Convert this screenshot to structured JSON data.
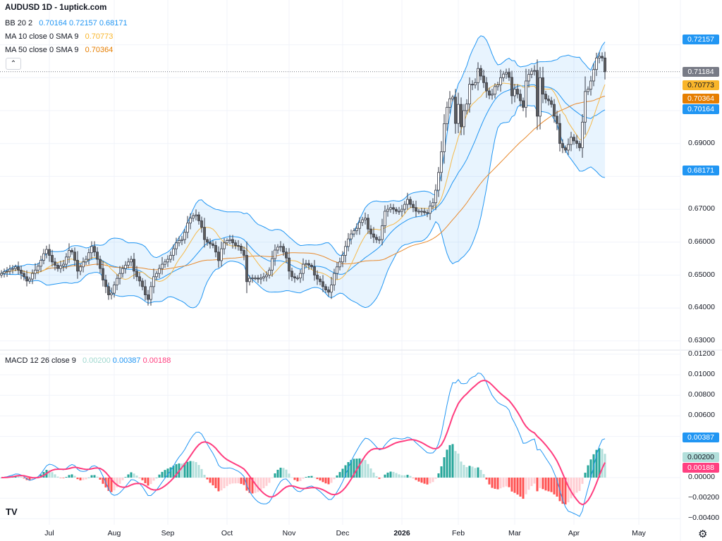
{
  "header": {
    "title": "AUDUSD 1D - 1uptick.com",
    "collapse_icon": "chevron-up-icon"
  },
  "legend": {
    "bb": {
      "label": "BB 20 2",
      "basis": "0.70164",
      "upper": "0.72157",
      "lower": "0.68171"
    },
    "ma10": {
      "label": "MA 10 close 0 SMA 9",
      "value": "0.70773"
    },
    "ma50": {
      "label": "MA 50 close 0 SMA 9",
      "value": "0.70364"
    },
    "macd": {
      "label": "MACD 12 26 close 9",
      "hist": "0.00200",
      "macd": "0.00387",
      "signal": "0.00188"
    }
  },
  "colors": {
    "bb": "#2196f3",
    "bb_fill": "rgba(33,150,243,0.10)",
    "ma10": "#f5b94a",
    "ma50": "#e8892c",
    "up": "#ffffff",
    "down": "#5d5d5d",
    "outline": "#363a45",
    "macd": "#2196f3",
    "signal": "#ff3d7f",
    "hist_up_strong": "#26a69a",
    "hist_up_weak": "#b2dfdb",
    "hist_dn_strong": "#ff5252",
    "hist_dn_weak": "#ffcdd2",
    "last": "#787b86"
  },
  "price_labels": [
    {
      "value": 0.72157,
      "text": "0.72157",
      "bg": "#2196f3",
      "fg": "#ffffff"
    },
    {
      "value": 0.71184,
      "text": "0.71184",
      "bg": "#787b86",
      "fg": "#ffffff"
    },
    {
      "value": 0.70773,
      "text": "0.70773",
      "bg": "#f9b52a",
      "fg": "#131722"
    },
    {
      "value": 0.70364,
      "text": "0.70364",
      "bg": "#e67e00",
      "fg": "#ffffff"
    },
    {
      "value": 0.70164,
      "text": "0.70164",
      "bg": "#2196f3",
      "fg": "#ffffff"
    },
    {
      "value": 0.68171,
      "text": "0.68171",
      "bg": "#2196f3",
      "fg": "#ffffff"
    }
  ],
  "macd_labels": [
    {
      "value": 0.00387,
      "text": "0.00387",
      "bg": "#2196f3",
      "fg": "#ffffff"
    },
    {
      "value": 0.002,
      "text": "0.00200",
      "bg": "#b2dfdb",
      "fg": "#131722"
    },
    {
      "value": 0.00188,
      "text": "0.00188",
      "bg": "#ff4081",
      "fg": "#ffffff"
    }
  ],
  "footer": {
    "logo": "TV",
    "settings_icon": "gear-icon"
  },
  "chart_data": {
    "type": "candlestick",
    "symbol": "AUDUSD",
    "interval": "1D",
    "price_ticks": [
      0.69,
      0.67,
      0.66,
      0.65,
      0.64,
      0.63
    ],
    "price_tick_labels": [
      "0.69000",
      "0.67000",
      "0.66000",
      "0.65000",
      "0.64000",
      "0.63000"
    ],
    "macd_ticks": [
      0.012,
      0.01,
      0.008,
      0.006,
      0.0,
      -0.002,
      -0.004
    ],
    "macd_tick_labels": [
      "0.01200",
      "0.01000",
      "0.00800",
      "0.00600",
      "0.00000",
      "−0.00200",
      "−0.00400"
    ],
    "x_labels": [
      "Jul",
      "Aug",
      "Sep",
      "Oct",
      "Nov",
      "Dec",
      "2026",
      "Feb",
      "Mar",
      "Apr",
      "May"
    ],
    "x_label_bar_index": [
      17,
      40,
      59,
      80,
      102,
      121,
      142,
      162,
      182,
      203,
      226
    ],
    "last_close": 0.71184,
    "grid": true,
    "closes": [
      0.6505,
      0.651,
      0.6512,
      0.6518,
      0.652,
      0.6525,
      0.6515,
      0.6505,
      0.6495,
      0.6482,
      0.6488,
      0.6505,
      0.6515,
      0.6527,
      0.6545,
      0.6565,
      0.6578,
      0.656,
      0.654,
      0.653,
      0.652,
      0.6528,
      0.6533,
      0.6555,
      0.6575,
      0.657,
      0.6545,
      0.6512,
      0.6525,
      0.654,
      0.6548,
      0.6568,
      0.6587,
      0.657,
      0.6548,
      0.652,
      0.6485,
      0.6465,
      0.644,
      0.6445,
      0.647,
      0.649,
      0.6505,
      0.652,
      0.653,
      0.654,
      0.6548,
      0.6512,
      0.6495,
      0.6482,
      0.6465,
      0.644,
      0.6426,
      0.6465,
      0.6495,
      0.6505,
      0.652,
      0.6533,
      0.654,
      0.6548,
      0.656,
      0.658,
      0.6598,
      0.6605,
      0.6608,
      0.663,
      0.6658,
      0.6673,
      0.668,
      0.6683,
      0.6665,
      0.6645,
      0.6608,
      0.66,
      0.6595,
      0.659,
      0.657,
      0.6544,
      0.658,
      0.6598,
      0.6605,
      0.6608,
      0.6598,
      0.659,
      0.6588,
      0.6575,
      0.656,
      0.648,
      0.649,
      0.6491,
      0.6491,
      0.6488,
      0.6491,
      0.6495,
      0.65,
      0.6515,
      0.655,
      0.6576,
      0.6585,
      0.6587,
      0.657,
      0.6552,
      0.6512,
      0.6495,
      0.6491,
      0.6491,
      0.6505,
      0.6533,
      0.6535,
      0.653,
      0.6525,
      0.65,
      0.6488,
      0.648,
      0.6465,
      0.6455,
      0.6448,
      0.647,
      0.6505,
      0.6525,
      0.654,
      0.656,
      0.6587,
      0.661,
      0.6625,
      0.6635,
      0.6642,
      0.666,
      0.6668,
      0.6673,
      0.664,
      0.6625,
      0.6615,
      0.6608,
      0.6608,
      0.665,
      0.6694,
      0.67,
      0.6705,
      0.67,
      0.6694,
      0.6694,
      0.67,
      0.6715,
      0.673,
      0.6715,
      0.6705,
      0.6694,
      0.6694,
      0.6694,
      0.669,
      0.6688,
      0.671,
      0.672,
      0.6758,
      0.6812,
      0.6875,
      0.696,
      0.701,
      0.7036,
      0.7041,
      0.6961,
      0.7019,
      0.6951,
      0.7,
      0.702,
      0.708,
      0.7078,
      0.7085,
      0.7128,
      0.7105,
      0.7085,
      0.706,
      0.7047,
      0.705,
      0.7073,
      0.7078,
      0.71,
      0.7111,
      0.7116,
      0.7101,
      0.7045,
      0.7065,
      0.705,
      0.703,
      0.701,
      0.709,
      0.711,
      0.712,
      0.7122,
      0.6983,
      0.71,
      0.705,
      0.7035,
      0.703,
      0.7019,
      0.6983,
      0.6961,
      0.69,
      0.6887,
      0.688,
      0.6897,
      0.6919,
      0.6908,
      0.69,
      0.6887,
      0.6965,
      0.7058,
      0.7065,
      0.709,
      0.7125,
      0.716,
      0.7165,
      0.716,
      0.7118
    ]
  }
}
